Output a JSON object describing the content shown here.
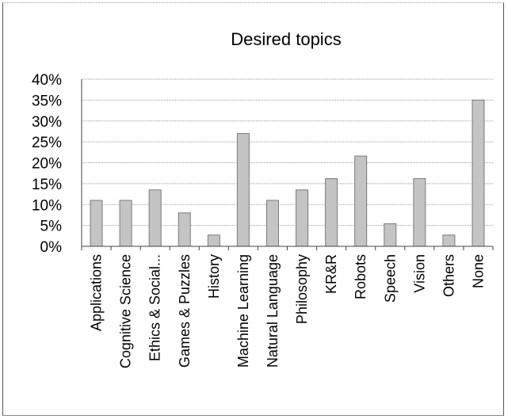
{
  "chart_data": {
    "type": "bar",
    "title": "Desired topics",
    "xlabel": "",
    "ylabel": "",
    "ylim": [
      0,
      40
    ],
    "yticks": [
      "0%",
      "5%",
      "10%",
      "15%",
      "20%",
      "25%",
      "30%",
      "35%",
      "40%"
    ],
    "grid": true,
    "legend": "none",
    "categories": [
      "Applications",
      "Cognitive Science",
      "Ethics & Social...",
      "Games & Puzzles",
      "History",
      "Machine Learning",
      "Natural Language",
      "Philosophy",
      "KR&R",
      "Robots",
      "Speech",
      "Vision",
      "Others",
      "None"
    ],
    "values": [
      11,
      11,
      13.5,
      8,
      2.7,
      27,
      11,
      13.5,
      16.2,
      21.6,
      5.4,
      16.2,
      2.7,
      35
    ],
    "bar_color": "#c4c4c4",
    "bar_edge_color": "#7a7a7a"
  }
}
